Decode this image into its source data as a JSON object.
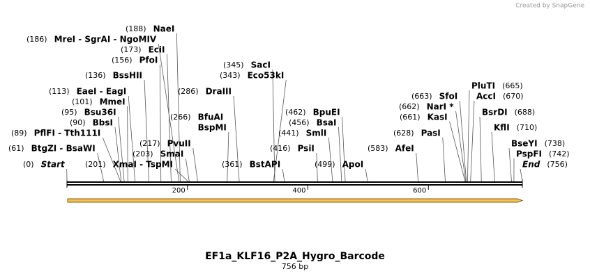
{
  "credit": "Created by SnapGene",
  "title": "EF1a_KLF16_P2A_Hygro_Barcode",
  "subtitle": "756 bp",
  "ruler": {
    "length": 756,
    "ticks": [
      200,
      400,
      600
    ]
  },
  "sites": [
    {
      "position": 188,
      "position_label": "(188)",
      "names": [
        "NaeI"
      ]
    },
    {
      "position": 186,
      "position_label": "(186)",
      "names": [
        "MreI  - SgrAI  - NgoMIV"
      ]
    },
    {
      "position": 173,
      "position_label": "(173)",
      "names": [
        "EciI"
      ]
    },
    {
      "position": 156,
      "position_label": "(156)",
      "names": [
        "PfoI"
      ]
    },
    {
      "position": 136,
      "position_label": "(136)",
      "names": [
        "BssHII"
      ]
    },
    {
      "position": 113,
      "position_label": "(113)",
      "names": [
        "EaeI  - EagI"
      ]
    },
    {
      "position": 101,
      "position_label": "(101)",
      "names": [
        "MmeI"
      ]
    },
    {
      "position": 95,
      "position_label": "(95)",
      "names": [
        "Bsu36I"
      ]
    },
    {
      "position": 90,
      "position_label": "(90)",
      "names": [
        "BbsI"
      ]
    },
    {
      "position": 89,
      "position_label": "(89)",
      "names": [
        "PflFI  - Tth111I"
      ]
    },
    {
      "position": 61,
      "position_label": "(61)",
      "names": [
        "BtgZI  - BsaWI"
      ]
    },
    {
      "position": 0,
      "position_label": "(0)",
      "names": [
        "Start"
      ]
    },
    {
      "position": 201,
      "position_label": "(201)",
      "names": [
        "XmaI  - TspMI"
      ]
    },
    {
      "position": 203,
      "position_label": "(203)",
      "names": [
        "SmaI"
      ]
    },
    {
      "position": 217,
      "position_label": "(217)",
      "names": [
        "PvuII"
      ]
    },
    {
      "position": 266,
      "position_label": "(266)",
      "names": [
        "BfuAI",
        "BspMI"
      ]
    },
    {
      "position": 286,
      "position_label": "(286)",
      "names": [
        "DraIII"
      ]
    },
    {
      "position": 345,
      "position_label": "(345)",
      "names": [
        "SacI"
      ]
    },
    {
      "position": 343,
      "position_label": "(343)",
      "names": [
        "Eco53kI"
      ]
    },
    {
      "position": 361,
      "position_label": "(361)",
      "names": [
        "BstAPI"
      ]
    },
    {
      "position": 416,
      "position_label": "(416)",
      "names": [
        "PsiI"
      ]
    },
    {
      "position": 441,
      "position_label": "(441)",
      "names": [
        "SmlI"
      ]
    },
    {
      "position": 456,
      "position_label": "(456)",
      "names": [
        "BsaI"
      ]
    },
    {
      "position": 462,
      "position_label": "(462)",
      "names": [
        "BpuEI"
      ]
    },
    {
      "position": 499,
      "position_label": "(499)",
      "names": [
        "ApoI"
      ]
    },
    {
      "position": 583,
      "position_label": "(583)",
      "names": [
        "AfeI"
      ]
    },
    {
      "position": 628,
      "position_label": "(628)",
      "names": [
        "PasI"
      ]
    },
    {
      "position": 661,
      "position_label": "(661)",
      "names": [
        "KasI"
      ]
    },
    {
      "position": 662,
      "position_label": "(662)",
      "names": [
        "NarI *"
      ]
    },
    {
      "position": 663,
      "position_label": "(663)",
      "names": [
        "SfoI"
      ]
    },
    {
      "position": 665,
      "position_label": "(665)",
      "names": [
        "PluTI"
      ]
    },
    {
      "position": 670,
      "position_label": "(670)",
      "names": [
        "AccI"
      ]
    },
    {
      "position": 688,
      "position_label": "(688)",
      "names": [
        "BsrDI"
      ]
    },
    {
      "position": 710,
      "position_label": "(710)",
      "names": [
        "KflI"
      ]
    },
    {
      "position": 738,
      "position_label": "(738)",
      "names": [
        "BseYI"
      ]
    },
    {
      "position": 742,
      "position_label": "(742)",
      "names": [
        "PspFI"
      ]
    },
    {
      "position": 756,
      "position_label": "(756)",
      "names": [
        "End"
      ]
    }
  ]
}
